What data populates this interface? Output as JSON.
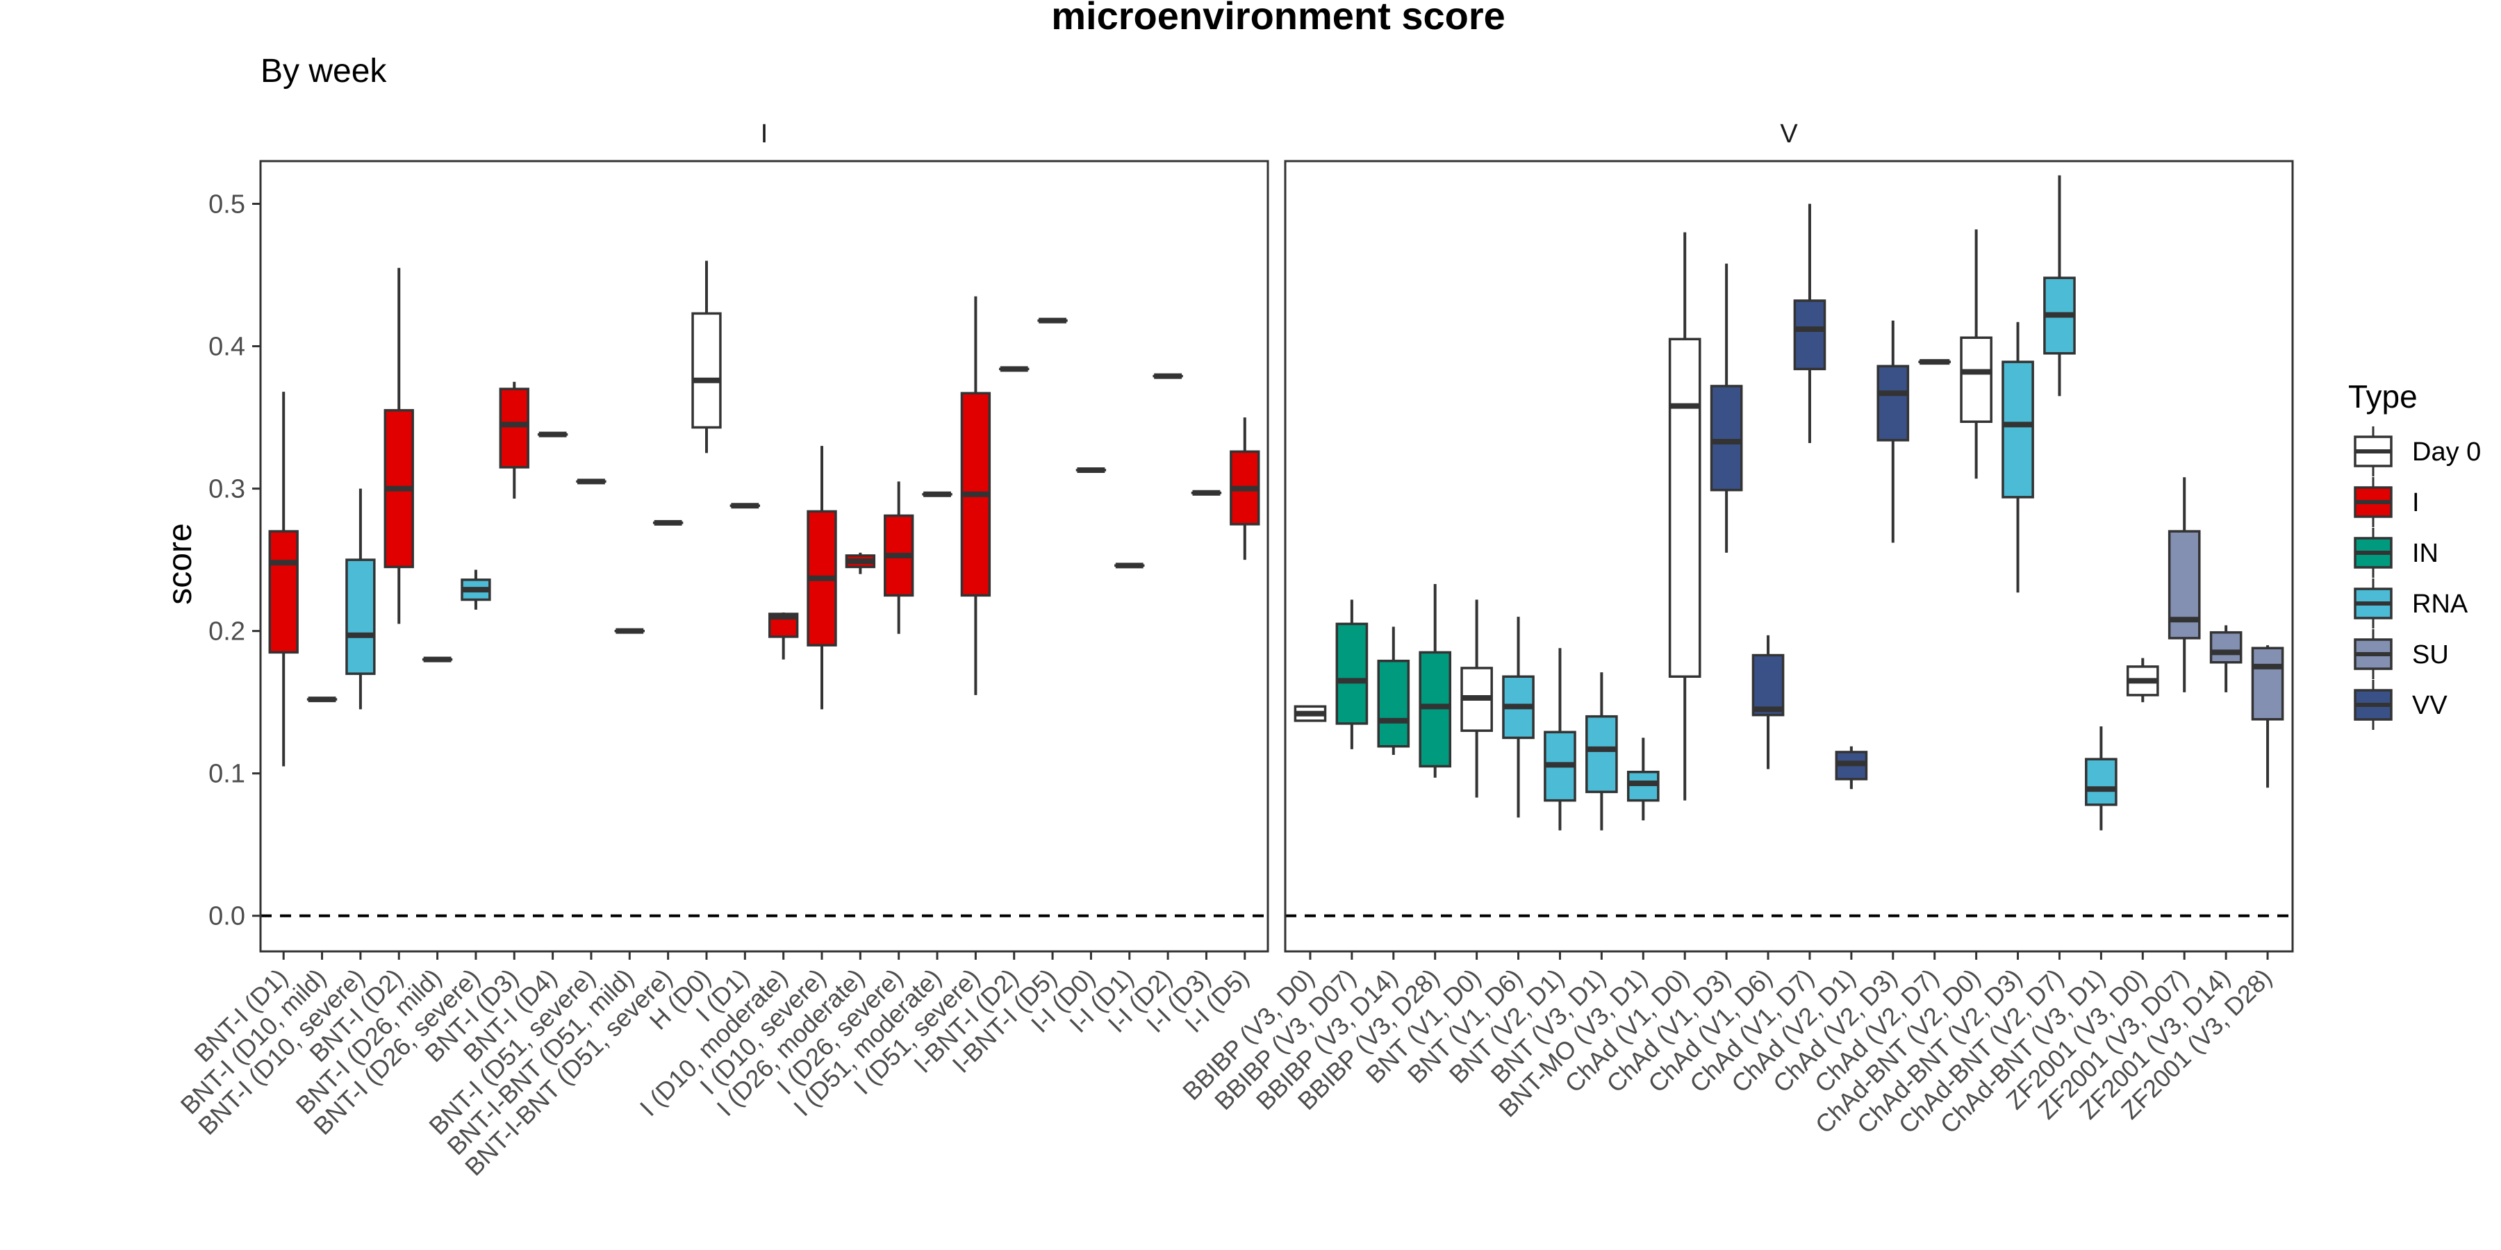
{
  "chart_data": {
    "type": "box",
    "title": "microenvironment score",
    "subtitle": "By week",
    "ylabel": "score",
    "ylim": [
      -0.025,
      0.53
    ],
    "yticks": [
      0.0,
      0.1,
      0.2,
      0.3,
      0.4,
      0.5
    ],
    "yticklabels": [
      "0.0",
      "0.1",
      "0.2",
      "0.3",
      "0.4",
      "0.5"
    ],
    "reference_line": {
      "y": 0.0,
      "style": "dashed"
    },
    "grid": false,
    "legend": {
      "title": "Type",
      "position": "right",
      "entries": [
        {
          "name": "Day 0",
          "color": "#ffffff"
        },
        {
          "name": "I",
          "color": "#e00000"
        },
        {
          "name": "IN",
          "color": "#009a7e"
        },
        {
          "name": "RNA",
          "color": "#4cbcd6"
        },
        {
          "name": "SU",
          "color": "#8390b2"
        },
        {
          "name": "VV",
          "color": "#3a5188"
        }
      ]
    },
    "panels": [
      {
        "label": "I",
        "boxes": [
          {
            "label": "BNT-I (D1)",
            "type": "I",
            "q1": 0.185,
            "median": 0.248,
            "q3": 0.27,
            "min": 0.105,
            "max": 0.368
          },
          {
            "label": "BNT-I (D10, mild)",
            "type": "I",
            "q1": 0.152,
            "median": 0.152,
            "q3": 0.152,
            "min": 0.152,
            "max": 0.152
          },
          {
            "label": "BNT-I (D10, severe)",
            "type": "RNA",
            "q1": 0.17,
            "median": 0.197,
            "q3": 0.25,
            "min": 0.145,
            "max": 0.3
          },
          {
            "label": "BNT-I (D2)",
            "type": "I",
            "q1": 0.245,
            "median": 0.3,
            "q3": 0.355,
            "min": 0.205,
            "max": 0.455
          },
          {
            "label": "BNT-I (D26, mild)",
            "type": "I",
            "q1": 0.18,
            "median": 0.18,
            "q3": 0.18,
            "min": 0.18,
            "max": 0.18
          },
          {
            "label": "BNT-I (D26, severe)",
            "type": "RNA",
            "q1": 0.222,
            "median": 0.229,
            "q3": 0.236,
            "min": 0.215,
            "max": 0.243
          },
          {
            "label": "BNT-I (D3)",
            "type": "I",
            "q1": 0.315,
            "median": 0.345,
            "q3": 0.37,
            "min": 0.293,
            "max": 0.375
          },
          {
            "label": "BNT-I (D4)",
            "type": "I",
            "q1": 0.338,
            "median": 0.338,
            "q3": 0.338,
            "min": 0.338,
            "max": 0.338
          },
          {
            "label": "BNT-I (D51, severe)",
            "type": "I",
            "q1": 0.305,
            "median": 0.305,
            "q3": 0.305,
            "min": 0.305,
            "max": 0.305
          },
          {
            "label": "BNT-I-BNT (D51, mild)",
            "type": "I",
            "q1": 0.2,
            "median": 0.2,
            "q3": 0.2,
            "min": 0.2,
            "max": 0.2
          },
          {
            "label": "BNT-I-BNT (D51, severe)",
            "type": "I",
            "q1": 0.276,
            "median": 0.276,
            "q3": 0.276,
            "min": 0.276,
            "max": 0.276
          },
          {
            "label": "H (D0)",
            "type": "Day 0",
            "q1": 0.343,
            "median": 0.376,
            "q3": 0.423,
            "min": 0.325,
            "max": 0.46
          },
          {
            "label": "I (D1)",
            "type": "I",
            "q1": 0.288,
            "median": 0.288,
            "q3": 0.288,
            "min": 0.288,
            "max": 0.288
          },
          {
            "label": "I (D10, moderate)",
            "type": "I",
            "q1": 0.196,
            "median": 0.21,
            "q3": 0.212,
            "min": 0.18,
            "max": 0.213
          },
          {
            "label": "I (D10, severe)",
            "type": "I",
            "q1": 0.19,
            "median": 0.237,
            "q3": 0.284,
            "min": 0.145,
            "max": 0.33
          },
          {
            "label": "I (D26, moderate)",
            "type": "I",
            "q1": 0.245,
            "median": 0.249,
            "q3": 0.253,
            "min": 0.24,
            "max": 0.255
          },
          {
            "label": "I (D26, severe)",
            "type": "I",
            "q1": 0.225,
            "median": 0.253,
            "q3": 0.281,
            "min": 0.198,
            "max": 0.305
          },
          {
            "label": "I (D51, moderate)",
            "type": "I",
            "q1": 0.296,
            "median": 0.296,
            "q3": 0.296,
            "min": 0.296,
            "max": 0.296
          },
          {
            "label": "I (D51, severe)",
            "type": "I",
            "q1": 0.225,
            "median": 0.296,
            "q3": 0.367,
            "min": 0.155,
            "max": 0.435
          },
          {
            "label": "I-BNT-I (D2)",
            "type": "I",
            "q1": 0.384,
            "median": 0.384,
            "q3": 0.384,
            "min": 0.384,
            "max": 0.384
          },
          {
            "label": "I-BNT-I (D5)",
            "type": "I",
            "q1": 0.418,
            "median": 0.418,
            "q3": 0.418,
            "min": 0.418,
            "max": 0.418
          },
          {
            "label": "I-I (D0)",
            "type": "I",
            "q1": 0.313,
            "median": 0.313,
            "q3": 0.313,
            "min": 0.313,
            "max": 0.313
          },
          {
            "label": "I-I (D1)",
            "type": "I",
            "q1": 0.246,
            "median": 0.246,
            "q3": 0.246,
            "min": 0.246,
            "max": 0.246
          },
          {
            "label": "I-I (D2)",
            "type": "I",
            "q1": 0.379,
            "median": 0.379,
            "q3": 0.379,
            "min": 0.379,
            "max": 0.379
          },
          {
            "label": "I-I (D3)",
            "type": "I",
            "q1": 0.297,
            "median": 0.297,
            "q3": 0.297,
            "min": 0.297,
            "max": 0.297
          },
          {
            "label": "I-I (D5)",
            "type": "I",
            "q1": 0.275,
            "median": 0.3,
            "q3": 0.326,
            "min": 0.25,
            "max": 0.35
          }
        ]
      },
      {
        "label": "V",
        "boxes": [
          {
            "label": "BBIBP (V3, D0)",
            "type": "Day 0",
            "q1": 0.137,
            "median": 0.142,
            "q3": 0.147,
            "min": 0.137,
            "max": 0.147
          },
          {
            "label": "BBIBP (V3, D07)",
            "type": "IN",
            "q1": 0.135,
            "median": 0.165,
            "q3": 0.205,
            "min": 0.117,
            "max": 0.222
          },
          {
            "label": "BBIBP (V3, D14)",
            "type": "IN",
            "q1": 0.119,
            "median": 0.137,
            "q3": 0.179,
            "min": 0.113,
            "max": 0.203
          },
          {
            "label": "BBIBP (V3, D28)",
            "type": "IN",
            "q1": 0.105,
            "median": 0.147,
            "q3": 0.185,
            "min": 0.097,
            "max": 0.233
          },
          {
            "label": "BNT (V1, D0)",
            "type": "Day 0",
            "q1": 0.13,
            "median": 0.153,
            "q3": 0.174,
            "min": 0.083,
            "max": 0.222
          },
          {
            "label": "BNT (V1, D6)",
            "type": "RNA",
            "q1": 0.125,
            "median": 0.147,
            "q3": 0.168,
            "min": 0.069,
            "max": 0.21
          },
          {
            "label": "BNT (V2, D1)",
            "type": "RNA",
            "q1": 0.081,
            "median": 0.106,
            "q3": 0.129,
            "min": 0.06,
            "max": 0.188
          },
          {
            "label": "BNT (V3, D1)",
            "type": "RNA",
            "q1": 0.087,
            "median": 0.117,
            "q3": 0.14,
            "min": 0.06,
            "max": 0.171
          },
          {
            "label": "BNT-MO (V3, D1)",
            "type": "RNA",
            "q1": 0.081,
            "median": 0.093,
            "q3": 0.101,
            "min": 0.067,
            "max": 0.125
          },
          {
            "label": "ChAd (V1, D0)",
            "type": "Day 0",
            "q1": 0.168,
            "median": 0.358,
            "q3": 0.405,
            "min": 0.081,
            "max": 0.48
          },
          {
            "label": "ChAd (V1, D3)",
            "type": "VV",
            "q1": 0.299,
            "median": 0.333,
            "q3": 0.372,
            "min": 0.255,
            "max": 0.458
          },
          {
            "label": "ChAd (V1, D6)",
            "type": "VV",
            "q1": 0.141,
            "median": 0.145,
            "q3": 0.183,
            "min": 0.103,
            "max": 0.197
          },
          {
            "label": "ChAd (V1, D7)",
            "type": "VV",
            "q1": 0.384,
            "median": 0.412,
            "q3": 0.432,
            "min": 0.332,
            "max": 0.5
          },
          {
            "label": "ChAd (V2, D1)",
            "type": "VV",
            "q1": 0.096,
            "median": 0.107,
            "q3": 0.115,
            "min": 0.089,
            "max": 0.119
          },
          {
            "label": "ChAd (V2, D3)",
            "type": "VV",
            "q1": 0.334,
            "median": 0.367,
            "q3": 0.386,
            "min": 0.262,
            "max": 0.418
          },
          {
            "label": "ChAd (V2, D7)",
            "type": "VV",
            "q1": 0.389,
            "median": 0.389,
            "q3": 0.389,
            "min": 0.389,
            "max": 0.389
          },
          {
            "label": "ChAd-BNT (V2, D0)",
            "type": "Day 0",
            "q1": 0.347,
            "median": 0.382,
            "q3": 0.406,
            "min": 0.307,
            "max": 0.482
          },
          {
            "label": "ChAd-BNT (V2, D3)",
            "type": "RNA",
            "q1": 0.294,
            "median": 0.345,
            "q3": 0.389,
            "min": 0.227,
            "max": 0.417
          },
          {
            "label": "ChAd-BNT (V2, D7)",
            "type": "RNA",
            "q1": 0.395,
            "median": 0.422,
            "q3": 0.448,
            "min": 0.365,
            "max": 0.52
          },
          {
            "label": "ChAd-BNT (V3, D1)",
            "type": "RNA",
            "q1": 0.078,
            "median": 0.089,
            "q3": 0.11,
            "min": 0.06,
            "max": 0.133
          },
          {
            "label": "ZF2001 (V3, D0)",
            "type": "Day 0",
            "q1": 0.155,
            "median": 0.165,
            "q3": 0.175,
            "min": 0.15,
            "max": 0.181
          },
          {
            "label": "ZF2001 (V3, D07)",
            "type": "SU",
            "q1": 0.195,
            "median": 0.208,
            "q3": 0.27,
            "min": 0.157,
            "max": 0.308
          },
          {
            "label": "ZF2001 (V3, D14)",
            "type": "SU",
            "q1": 0.178,
            "median": 0.185,
            "q3": 0.199,
            "min": 0.157,
            "max": 0.204
          },
          {
            "label": "ZF2001 (V3, D28)",
            "type": "SU",
            "q1": 0.138,
            "median": 0.175,
            "q3": 0.188,
            "min": 0.09,
            "max": 0.19
          }
        ]
      }
    ]
  }
}
